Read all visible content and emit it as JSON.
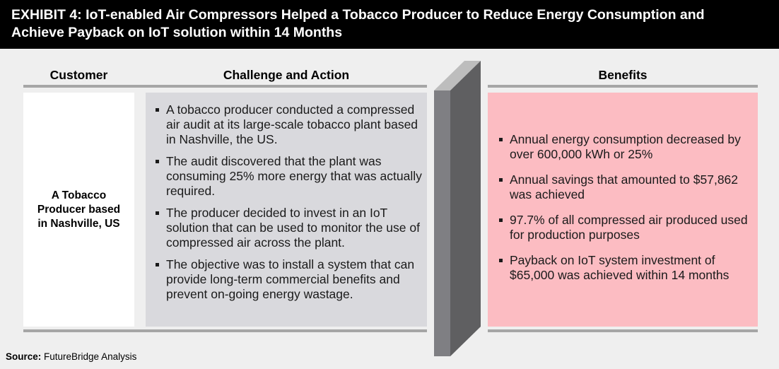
{
  "header": {
    "line1": "EXHIBIT 4: IoT-enabled Air Compressors Helped a Tobacco Producer to Reduce Energy Consumption and",
    "line2": "Achieve Payback on IoT solution within 14 Months"
  },
  "columns": {
    "customer": "Customer",
    "challenge": "Challenge and Action",
    "benefits": "Benefits"
  },
  "customer": {
    "name": "A Tobacco Producer based in Nashville, US"
  },
  "challenges": [
    {
      "text": "A tobacco producer conducted a compressed air audit at its large-scale tobacco plant based in Nashville, the US."
    },
    {
      "text": "The audit discovered that the plant was consuming 25% more energy that was actually required."
    },
    {
      "text": "The producer decided to invest in an IoT solution that can be used to monitor the use of compressed air across the plant."
    },
    {
      "text": "The objective was to install a system that can provide long-term commercial benefits and prevent on-going energy wastage."
    }
  ],
  "benefits": [
    {
      "text": "Annual energy consumption decreased by over 600,000 kWh or 25%"
    },
    {
      "text": "Annual savings that amounted to $57,862 was achieved"
    },
    {
      "text": "97.7% of all compressed air produced used for production purposes"
    },
    {
      "text": "Payback on IoT system investment of $65,000 was achieved within 14 months"
    }
  ],
  "source": {
    "label": "Source:",
    "text": " FutureBridge Analysis"
  },
  "colors": {
    "header_bg": "#000000",
    "challenge_bg": "#d9d9dd",
    "benefit_bg": "#fcbcc2",
    "rule": "#a6a6a6"
  }
}
